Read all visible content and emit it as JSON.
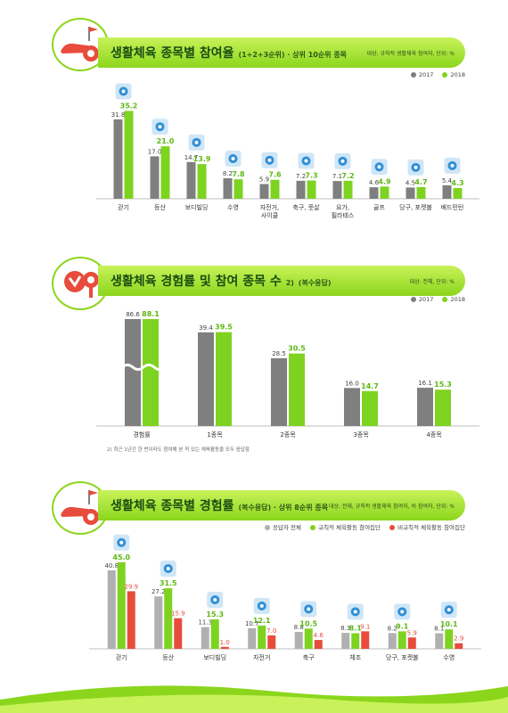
{
  "colors": {
    "gray": "#7f7f7f",
    "green": "#7ed321",
    "red": "#e74c3c",
    "lightgray": "#b0b0b0",
    "banner": "#8bd61c"
  },
  "section1": {
    "title": "생활체육 종목별 참여율",
    "subtitle": "(1+2+3순위) · 상위 10순위 종목",
    "note": "대상: 규칙적 생활체육 참여자, 단위: %",
    "legend": [
      "2017",
      "2018"
    ],
    "emblem_icon": "sneaker-ball-icon"
  },
  "section2": {
    "title": "생활체육 경험률 및 참여 종목 수",
    "superscript": "2)",
    "subtitle": "(복수응답)",
    "note": "대상: 전체, 단위: %",
    "legend": [
      "2017",
      "2018"
    ],
    "footnote": "2) 최근 1년간 한 번이라도 참여해 본 적 있는 체육활동을 모두 응답함",
    "emblem_icon": "hand-racket-icon"
  },
  "section3": {
    "title": "생활체육 종목별 경험률",
    "subtitle": "(복수응답) · 상위 8순위 종목",
    "note": "대상: 전체, 규칙적 생활체육 참여자, 비 참여자, 단위: %",
    "legend": [
      "응답자 전체",
      "규칙적 체육활동 참여집단",
      "비규칙적 체육활동 참여집단"
    ],
    "emblem_icon": "sneaker-ball-icon"
  },
  "chart_data": [
    {
      "type": "bar",
      "categories": [
        "걷기",
        "등산",
        "보디빌딩",
        "수영",
        "자전거,\n사이클",
        "축구, 풋살",
        "요가,\n필라테스",
        "골프",
        "당구, 포켓볼",
        "배드민턴"
      ],
      "series": [
        {
          "name": "2017",
          "values": [
            31.8,
            17.0,
            14.7,
            8.2,
            5.9,
            7.2,
            7.1,
            4.6,
            4.5,
            5.4
          ]
        },
        {
          "name": "2018",
          "values": [
            35.2,
            21.0,
            13.9,
            7.8,
            7.6,
            7.3,
            7.2,
            4.9,
            4.7,
            4.3
          ]
        }
      ],
      "icons": [
        "walking-icon",
        "mountain-icon",
        "dumbbell-icon",
        "swimming-icon",
        "bicycle-icon",
        "soccer-icon",
        "yoga-icon",
        "golf-icon",
        "billiards-icon",
        "badminton-icon"
      ],
      "ylim": [
        0,
        40
      ]
    },
    {
      "type": "bar",
      "categories": [
        "경험률",
        "1종목",
        "2종목",
        "3종목",
        "4종목"
      ],
      "series": [
        {
          "name": "2017",
          "values": [
            86.6,
            39.4,
            28.5,
            16.0,
            16.1
          ]
        },
        {
          "name": "2018",
          "values": [
            88.1,
            39.5,
            30.5,
            14.7,
            15.3
          ]
        }
      ],
      "axis_break": "first category",
      "ylim": [
        0,
        45
      ]
    },
    {
      "type": "bar",
      "categories": [
        "걷기",
        "등산",
        "보디빌딩",
        "자전거",
        "축구",
        "체조",
        "당구, 포켓볼",
        "수영"
      ],
      "series": [
        {
          "name": "응답자 전체",
          "values": [
            40.8,
            27.2,
            11.3,
            10.7,
            8.8,
            8.3,
            8.2,
            8.1
          ]
        },
        {
          "name": "규칙적 체육활동 참여집단",
          "values": [
            45.0,
            31.5,
            15.3,
            12.1,
            10.5,
            8.1,
            9.1,
            10.1
          ]
        },
        {
          "name": "비규칙적 체육활동 참여집단",
          "values": [
            29.9,
            15.9,
            1.0,
            7.0,
            4.6,
            9.1,
            5.9,
            2.9
          ]
        }
      ],
      "icons": [
        "walking-icon",
        "mountain-icon",
        "dumbbell-icon",
        "bicycle-icon",
        "soccer-icon",
        "gymnastics-icon",
        "billiards-icon",
        "swimming-icon"
      ],
      "ylim": [
        0,
        50
      ]
    }
  ]
}
